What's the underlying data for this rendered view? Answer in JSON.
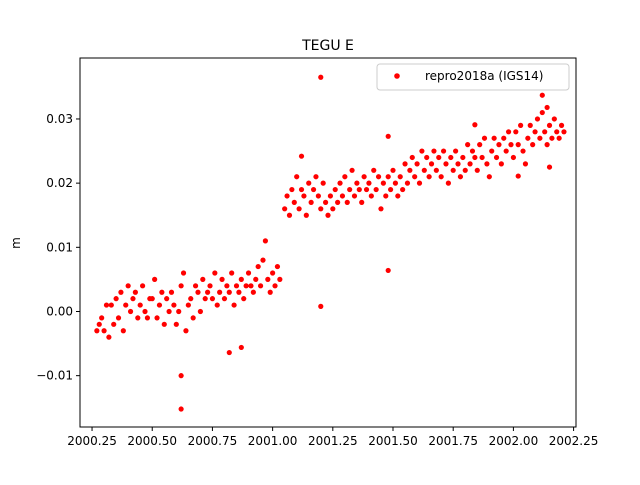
{
  "chart_data": {
    "type": "scatter",
    "title": "TEGU E",
    "xlabel": "",
    "ylabel": "m",
    "xlim": [
      2000.2,
      2002.26
    ],
    "ylim": [
      -0.018,
      0.0395
    ],
    "x_ticks": [
      2000.25,
      2000.5,
      2000.75,
      2001.0,
      2001.25,
      2001.5,
      2001.75,
      2002.0,
      2002.25
    ],
    "x_tick_labels": [
      "2000.25",
      "2000.50",
      "2000.75",
      "2001.00",
      "2001.25",
      "2001.50",
      "2001.75",
      "2002.00",
      "2002.25"
    ],
    "y_ticks": [
      -0.01,
      0.0,
      0.01,
      0.02,
      0.03
    ],
    "y_tick_labels": [
      "−0.01",
      "0.00",
      "0.01",
      "0.02",
      "0.03"
    ],
    "grid": false,
    "legend_position": "top-right",
    "series": [
      {
        "name": "repro2018a (IGS14)",
        "color": "#ff0000",
        "marker": "circle",
        "points": [
          [
            2000.27,
            -0.003
          ],
          [
            2000.28,
            -0.002
          ],
          [
            2000.29,
            -0.001
          ],
          [
            2000.3,
            -0.003
          ],
          [
            2000.31,
            0.001
          ],
          [
            2000.32,
            -0.004
          ],
          [
            2000.33,
            0.001
          ],
          [
            2000.34,
            -0.002
          ],
          [
            2000.35,
            0.002
          ],
          [
            2000.36,
            -0.001
          ],
          [
            2000.37,
            0.003
          ],
          [
            2000.38,
            -0.003
          ],
          [
            2000.39,
            0.001
          ],
          [
            2000.4,
            0.004
          ],
          [
            2000.41,
            0.0
          ],
          [
            2000.42,
            0.002
          ],
          [
            2000.43,
            0.003
          ],
          [
            2000.44,
            -0.001
          ],
          [
            2000.45,
            0.001
          ],
          [
            2000.46,
            0.004
          ],
          [
            2000.47,
            0.0
          ],
          [
            2000.48,
            -0.001
          ],
          [
            2000.49,
            0.002
          ],
          [
            2000.5,
            0.002
          ],
          [
            2000.51,
            0.005
          ],
          [
            2000.52,
            -0.001
          ],
          [
            2000.53,
            0.001
          ],
          [
            2000.54,
            0.003
          ],
          [
            2000.55,
            -0.002
          ],
          [
            2000.56,
            0.002
          ],
          [
            2000.57,
            0.0
          ],
          [
            2000.58,
            0.003
          ],
          [
            2000.59,
            0.001
          ],
          [
            2000.6,
            -0.002
          ],
          [
            2000.61,
            0.0
          ],
          [
            2000.62,
            0.004
          ],
          [
            2000.63,
            0.006
          ],
          [
            2000.64,
            -0.003
          ],
          [
            2000.65,
            0.001
          ],
          [
            2000.66,
            0.002
          ],
          [
            2000.67,
            -0.001
          ],
          [
            2000.68,
            0.004
          ],
          [
            2000.69,
            0.003
          ],
          [
            2000.7,
            0.0
          ],
          [
            2000.71,
            0.005
          ],
          [
            2000.72,
            0.002
          ],
          [
            2000.73,
            0.003
          ],
          [
            2000.74,
            0.004
          ],
          [
            2000.75,
            0.002
          ],
          [
            2000.76,
            0.006
          ],
          [
            2000.77,
            0.001
          ],
          [
            2000.78,
            0.003
          ],
          [
            2000.79,
            0.005
          ],
          [
            2000.8,
            0.002
          ],
          [
            2000.81,
            0.004
          ],
          [
            2000.82,
            0.003
          ],
          [
            2000.83,
            0.006
          ],
          [
            2000.84,
            0.001
          ],
          [
            2000.85,
            0.004
          ],
          [
            2000.86,
            0.003
          ],
          [
            2000.87,
            0.005
          ],
          [
            2000.88,
            0.002
          ],
          [
            2000.89,
            0.004
          ],
          [
            2000.9,
            0.006
          ],
          [
            2000.91,
            0.004
          ],
          [
            2000.92,
            0.003
          ],
          [
            2000.93,
            0.005
          ],
          [
            2000.94,
            0.007
          ],
          [
            2000.95,
            0.004
          ],
          [
            2000.96,
            0.008
          ],
          [
            2000.97,
            0.011
          ],
          [
            2000.98,
            0.005
          ],
          [
            2000.99,
            0.003
          ],
          [
            2001.0,
            0.006
          ],
          [
            2001.01,
            0.004
          ],
          [
            2001.02,
            0.007
          ],
          [
            2001.03,
            0.005
          ],
          [
            2001.05,
            0.016
          ],
          [
            2001.06,
            0.018
          ],
          [
            2001.07,
            0.015
          ],
          [
            2001.08,
            0.019
          ],
          [
            2001.09,
            0.017
          ],
          [
            2001.1,
            0.021
          ],
          [
            2001.11,
            0.016
          ],
          [
            2001.12,
            0.019
          ],
          [
            2001.13,
            0.018
          ],
          [
            2001.14,
            0.015
          ],
          [
            2001.15,
            0.02
          ],
          [
            2001.16,
            0.017
          ],
          [
            2001.17,
            0.019
          ],
          [
            2001.18,
            0.021
          ],
          [
            2001.19,
            0.018
          ],
          [
            2001.2,
            0.016
          ],
          [
            2001.21,
            0.02
          ],
          [
            2001.22,
            0.017
          ],
          [
            2001.23,
            0.015
          ],
          [
            2001.24,
            0.018
          ],
          [
            2001.25,
            0.016
          ],
          [
            2001.26,
            0.019
          ],
          [
            2001.27,
            0.017
          ],
          [
            2001.28,
            0.02
          ],
          [
            2001.29,
            0.018
          ],
          [
            2001.3,
            0.021
          ],
          [
            2001.31,
            0.017
          ],
          [
            2001.32,
            0.019
          ],
          [
            2001.33,
            0.022
          ],
          [
            2001.34,
            0.018
          ],
          [
            2001.35,
            0.02
          ],
          [
            2001.36,
            0.019
          ],
          [
            2001.37,
            0.017
          ],
          [
            2001.38,
            0.021
          ],
          [
            2001.39,
            0.019
          ],
          [
            2001.4,
            0.02
          ],
          [
            2001.41,
            0.018
          ],
          [
            2001.42,
            0.022
          ],
          [
            2001.43,
            0.019
          ],
          [
            2001.44,
            0.021
          ],
          [
            2001.45,
            0.016
          ],
          [
            2001.46,
            0.02
          ],
          [
            2001.47,
            0.018
          ],
          [
            2001.48,
            0.021
          ],
          [
            2001.49,
            0.019
          ],
          [
            2001.5,
            0.022
          ],
          [
            2001.51,
            0.02
          ],
          [
            2001.52,
            0.018
          ],
          [
            2001.53,
            0.021
          ],
          [
            2001.54,
            0.019
          ],
          [
            2001.55,
            0.023
          ],
          [
            2001.56,
            0.02
          ],
          [
            2001.57,
            0.022
          ],
          [
            2001.58,
            0.024
          ],
          [
            2001.59,
            0.021
          ],
          [
            2001.6,
            0.023
          ],
          [
            2001.61,
            0.02
          ],
          [
            2001.62,
            0.025
          ],
          [
            2001.63,
            0.022
          ],
          [
            2001.64,
            0.024
          ],
          [
            2001.65,
            0.021
          ],
          [
            2001.66,
            0.023
          ],
          [
            2001.67,
            0.025
          ],
          [
            2001.68,
            0.022
          ],
          [
            2001.69,
            0.024
          ],
          [
            2001.7,
            0.021
          ],
          [
            2001.71,
            0.025
          ],
          [
            2001.72,
            0.023
          ],
          [
            2001.73,
            0.02
          ],
          [
            2001.74,
            0.024
          ],
          [
            2001.75,
            0.022
          ],
          [
            2001.76,
            0.025
          ],
          [
            2001.77,
            0.023
          ],
          [
            2001.78,
            0.021
          ],
          [
            2001.79,
            0.024
          ],
          [
            2001.8,
            0.022
          ],
          [
            2001.81,
            0.026
          ],
          [
            2001.82,
            0.023
          ],
          [
            2001.83,
            0.025
          ],
          [
            2001.84,
            0.024
          ],
          [
            2001.85,
            0.022
          ],
          [
            2001.86,
            0.026
          ],
          [
            2001.87,
            0.024
          ],
          [
            2001.88,
            0.027
          ],
          [
            2001.89,
            0.023
          ],
          [
            2001.9,
            0.021
          ],
          [
            2001.91,
            0.025
          ],
          [
            2001.92,
            0.027
          ],
          [
            2001.93,
            0.024
          ],
          [
            2001.94,
            0.026
          ],
          [
            2001.95,
            0.023
          ],
          [
            2001.96,
            0.027
          ],
          [
            2001.97,
            0.025
          ],
          [
            2001.98,
            0.028
          ],
          [
            2001.99,
            0.026
          ],
          [
            2002.0,
            0.024
          ],
          [
            2002.01,
            0.028
          ],
          [
            2002.02,
            0.026
          ],
          [
            2002.03,
            0.029
          ],
          [
            2002.04,
            0.025
          ],
          [
            2002.05,
            0.023
          ],
          [
            2002.06,
            0.027
          ],
          [
            2002.07,
            0.029
          ],
          [
            2002.08,
            0.026
          ],
          [
            2002.09,
            0.028
          ],
          [
            2002.1,
            0.03
          ],
          [
            2002.11,
            0.027
          ],
          [
            2002.12,
            0.031
          ],
          [
            2002.13,
            0.028
          ],
          [
            2002.14,
            0.026
          ],
          [
            2002.15,
            0.029
          ],
          [
            2002.16,
            0.027
          ],
          [
            2002.17,
            0.03
          ],
          [
            2002.18,
            0.028
          ],
          [
            2002.19,
            0.027
          ],
          [
            2002.2,
            0.029
          ],
          [
            2002.21,
            0.028
          ],
          [
            2000.62,
            -0.01
          ],
          [
            2000.62,
            -0.0152
          ],
          [
            2000.82,
            -0.0064
          ],
          [
            2000.87,
            -0.0056
          ],
          [
            2001.2,
            0.0365
          ],
          [
            2001.2,
            0.0008
          ],
          [
            2001.48,
            0.0064
          ],
          [
            2001.48,
            0.0273
          ],
          [
            2001.12,
            0.0242
          ],
          [
            2002.12,
            0.0337
          ],
          [
            2002.14,
            0.0318
          ],
          [
            2002.15,
            0.0225
          ],
          [
            2002.02,
            0.0211
          ],
          [
            2001.84,
            0.0291
          ]
        ]
      }
    ]
  }
}
